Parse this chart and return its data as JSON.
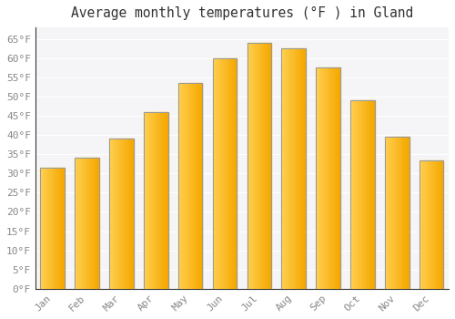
{
  "title": "Average monthly temperatures (°F ) in Gland",
  "months": [
    "Jan",
    "Feb",
    "Mar",
    "Apr",
    "May",
    "Jun",
    "Jul",
    "Aug",
    "Sep",
    "Oct",
    "Nov",
    "Dec"
  ],
  "values": [
    31.5,
    34.0,
    39.0,
    46.0,
    53.5,
    60.0,
    64.0,
    62.5,
    57.5,
    49.0,
    39.5,
    33.5
  ],
  "bar_color_left": "#FFD050",
  "bar_color_right": "#F5A800",
  "bar_border_color": "#9099A8",
  "background_color": "#FFFFFF",
  "plot_bg_color": "#F5F5F8",
  "grid_color": "#FFFFFF",
  "ylim": [
    0,
    68
  ],
  "yticks": [
    0,
    5,
    10,
    15,
    20,
    25,
    30,
    35,
    40,
    45,
    50,
    55,
    60,
    65
  ],
  "title_fontsize": 10.5,
  "tick_fontsize": 8,
  "tick_color": "#888888"
}
